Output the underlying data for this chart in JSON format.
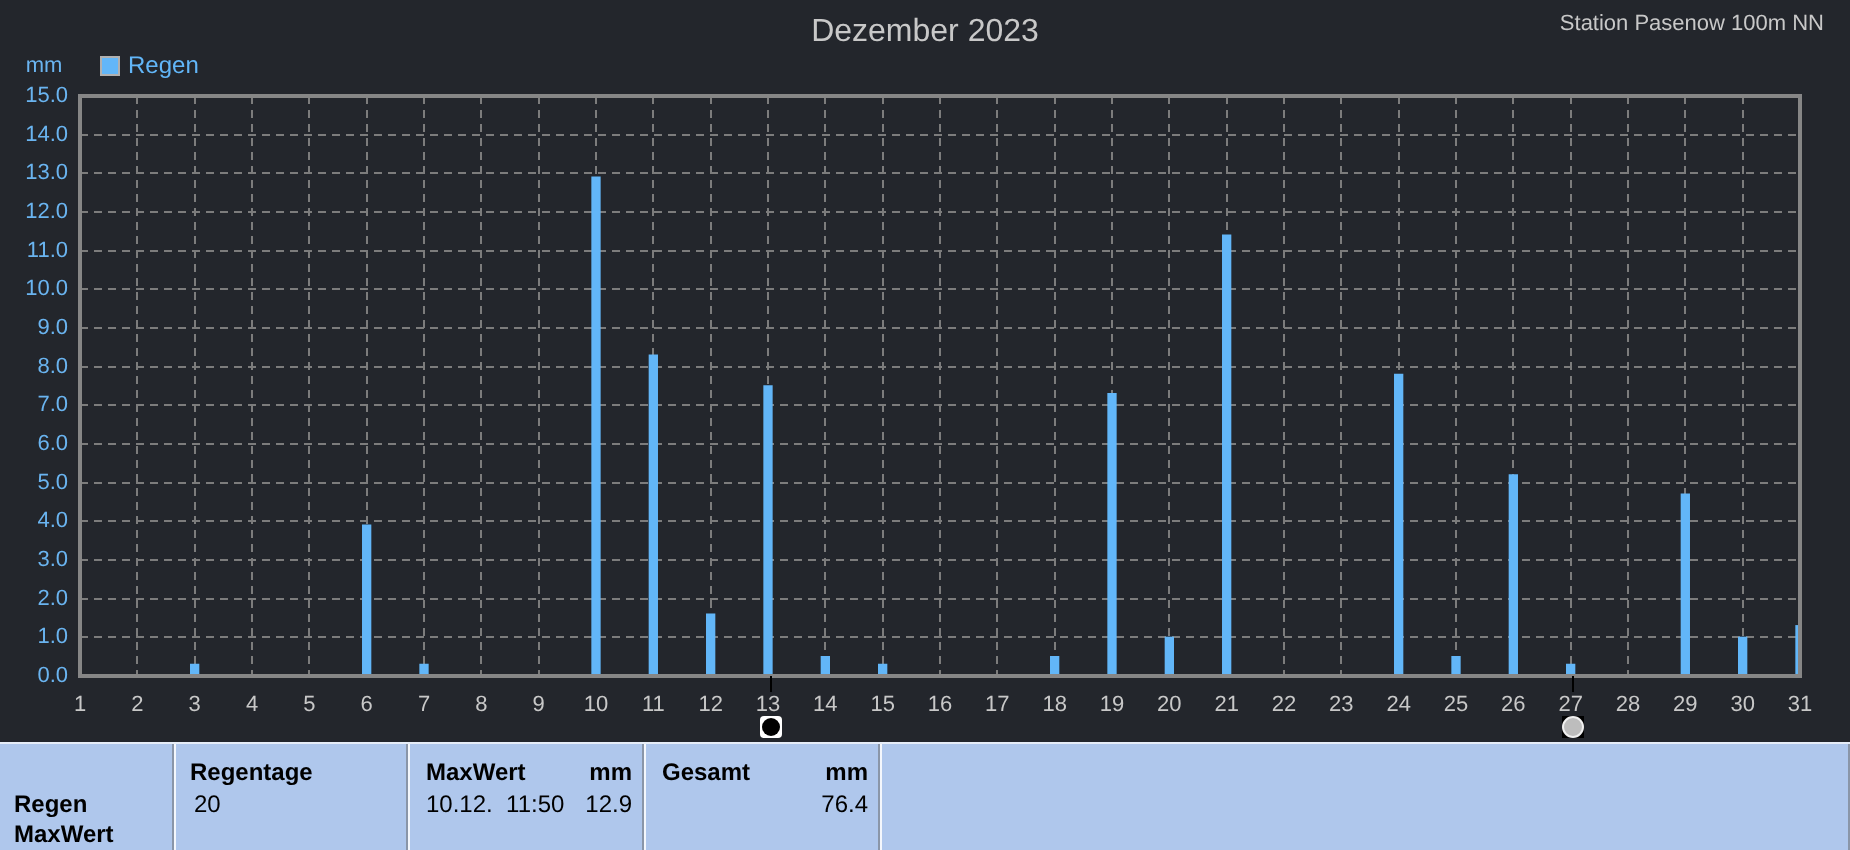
{
  "chart_data": {
    "type": "bar",
    "title": "Dezember 2023",
    "subtitle": "Station Pasenow 100m NN",
    "ylabel": "mm",
    "x": [
      3,
      6,
      7,
      10,
      11,
      12,
      13,
      14,
      15,
      18,
      19,
      20,
      21,
      24,
      25,
      26,
      27,
      29,
      30,
      31
    ],
    "series": [
      {
        "name": "Regen",
        "color": "#62b6f8",
        "values": [
          0.3,
          3.9,
          0.3,
          12.9,
          8.3,
          1.6,
          7.5,
          0.5,
          0.3,
          0.5,
          7.3,
          1.0,
          11.4,
          7.8,
          0.5,
          5.2,
          0.3,
          4.7,
          1.0,
          1.3
        ]
      }
    ],
    "xlim": [
      1,
      31
    ],
    "xticks": [
      1,
      2,
      3,
      4,
      5,
      6,
      7,
      8,
      9,
      10,
      11,
      12,
      13,
      14,
      15,
      16,
      17,
      18,
      19,
      20,
      21,
      22,
      23,
      24,
      25,
      26,
      27,
      28,
      29,
      30,
      31
    ],
    "ylim": [
      0,
      15
    ],
    "yticks": [
      {
        "value": 0,
        "label": "0.0"
      },
      {
        "value": 1,
        "label": "1.0"
      },
      {
        "value": 2,
        "label": "2.0"
      },
      {
        "value": 3,
        "label": "3.0"
      },
      {
        "value": 4,
        "label": "4.0"
      },
      {
        "value": 5,
        "label": "5.0"
      },
      {
        "value": 6,
        "label": "6.0"
      },
      {
        "value": 7,
        "label": "7.0"
      },
      {
        "value": 8,
        "label": "8.0"
      },
      {
        "value": 9,
        "label": "9.0"
      },
      {
        "value": 10,
        "label": "10.0"
      },
      {
        "value": 11,
        "label": "11.0"
      },
      {
        "value": 12,
        "label": "12.0"
      },
      {
        "value": 13,
        "label": "13.0"
      },
      {
        "value": 14,
        "label": "14.0"
      },
      {
        "value": 15,
        "label": "15.0"
      }
    ],
    "grid": true,
    "legend": "top left",
    "annotations": [
      "Regen",
      "MaxWert",
      "Regentage",
      "20",
      "MaxWert",
      "mm",
      "10.12.  11:50",
      "12.9",
      "Gesamt",
      "mm",
      "76.4"
    ]
  }
}
